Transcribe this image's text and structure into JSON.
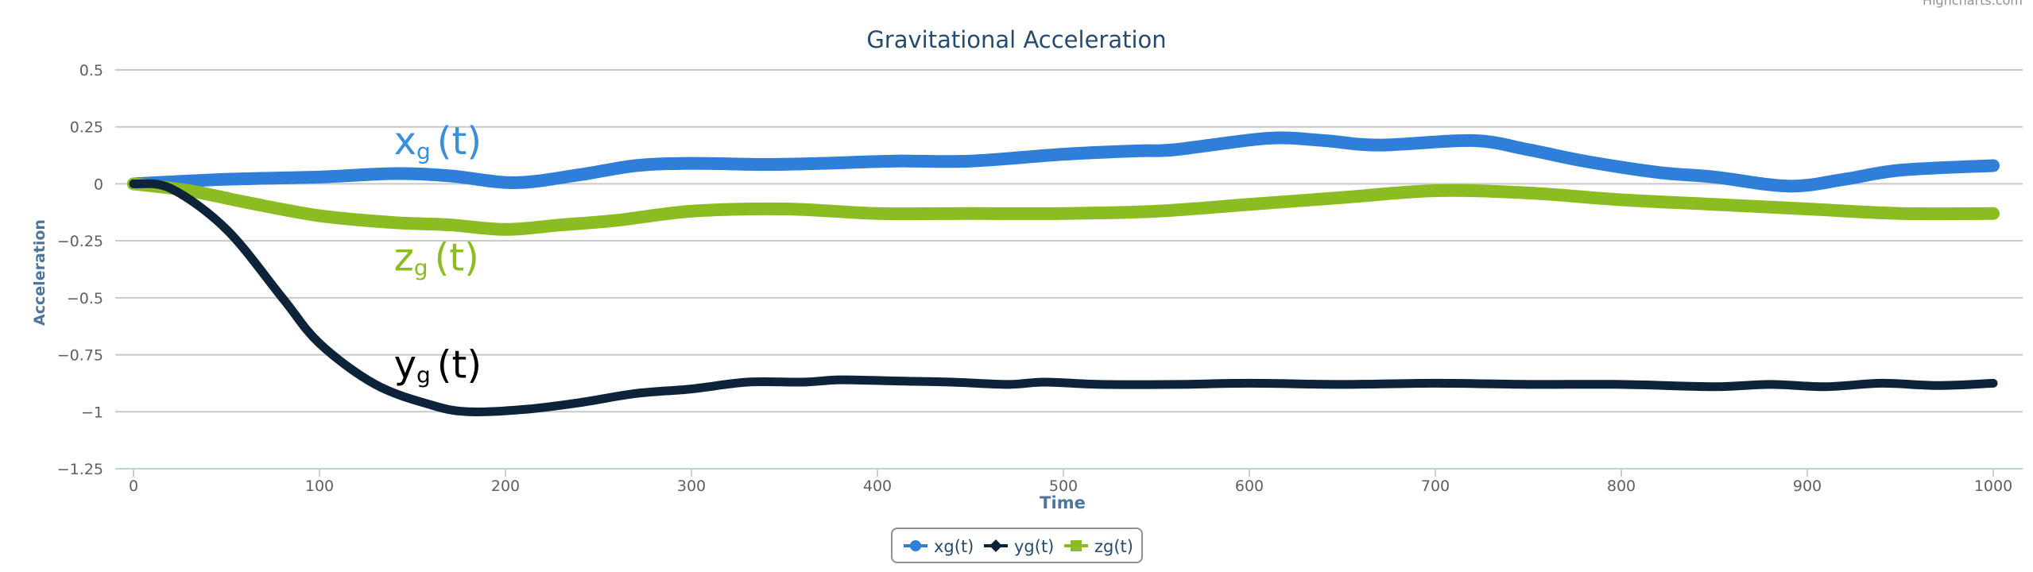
{
  "credit": "Highcharts.com",
  "chart_data": {
    "type": "line",
    "title": "Gravitational Acceleration",
    "xlabel": "Time",
    "ylabel": "Acceleration",
    "xlim": [
      0,
      1000
    ],
    "ylim": [
      -1.25,
      0.5
    ],
    "xticks": [
      0,
      100,
      200,
      300,
      400,
      500,
      600,
      700,
      800,
      900,
      1000
    ],
    "yticks": [
      0.5,
      0.25,
      0,
      -0.25,
      -0.5,
      -0.75,
      -1,
      -1.25
    ],
    "ytick_labels": [
      "0.5",
      "0.25",
      "0",
      "−0.25",
      "−0.5",
      "−0.75",
      "−1",
      "−1.25"
    ],
    "grid": true,
    "legend_placement": "bottom-center",
    "series": [
      {
        "name": "xg(t)",
        "color": "#2f7ed8",
        "marker": "circle",
        "x": [
          0,
          50,
          100,
          140,
          170,
          205,
          240,
          270,
          300,
          340,
          370,
          410,
          450,
          500,
          540,
          560,
          610,
          640,
          670,
          720,
          750,
          780,
          820,
          850,
          890,
          920,
          950,
          1000
        ],
        "y": [
          0,
          0.02,
          0.03,
          0.045,
          0.035,
          0.005,
          0.04,
          0.08,
          0.09,
          0.085,
          0.09,
          0.1,
          0.1,
          0.13,
          0.145,
          0.15,
          0.2,
          0.19,
          0.17,
          0.19,
          0.15,
          0.1,
          0.05,
          0.03,
          -0.01,
          0.02,
          0.06,
          0.08
        ]
      },
      {
        "name": "yg(t)",
        "color": "#0d233a",
        "marker": "diamond",
        "x": [
          0,
          20,
          50,
          80,
          100,
          130,
          160,
          180,
          210,
          240,
          270,
          300,
          330,
          360,
          380,
          410,
          440,
          470,
          490,
          520,
          560,
          600,
          650,
          700,
          750,
          800,
          850,
          880,
          910,
          940,
          970,
          1000
        ],
        "y": [
          0,
          -0.02,
          -0.2,
          -0.5,
          -0.7,
          -0.88,
          -0.97,
          -1.0,
          -0.99,
          -0.96,
          -0.92,
          -0.9,
          -0.87,
          -0.87,
          -0.86,
          -0.865,
          -0.87,
          -0.88,
          -0.87,
          -0.88,
          -0.88,
          -0.875,
          -0.88,
          -0.875,
          -0.88,
          -0.88,
          -0.89,
          -0.88,
          -0.89,
          -0.875,
          -0.885,
          -0.875
        ]
      },
      {
        "name": "zg(t)",
        "color": "#8bbc21",
        "marker": "square",
        "x": [
          0,
          30,
          60,
          100,
          140,
          170,
          200,
          230,
          260,
          300,
          350,
          400,
          450,
          500,
          550,
          600,
          650,
          700,
          750,
          800,
          850,
          900,
          950,
          1000
        ],
        "y": [
          0,
          -0.03,
          -0.08,
          -0.14,
          -0.17,
          -0.18,
          -0.2,
          -0.18,
          -0.16,
          -0.12,
          -0.11,
          -0.13,
          -0.13,
          -0.13,
          -0.12,
          -0.09,
          -0.06,
          -0.03,
          -0.04,
          -0.07,
          -0.09,
          -0.11,
          -0.13,
          -0.13
        ]
      }
    ],
    "annotations": [
      {
        "base": "x",
        "sub": "g",
        "tail": "(t)",
        "color": "#3a8fd8",
        "at": [
          140,
          0.13
        ]
      },
      {
        "base": "z",
        "sub": "g",
        "tail": "(t)",
        "color": "#8bbc21",
        "at": [
          140,
          -0.38
        ]
      },
      {
        "base": "y",
        "sub": "g",
        "tail": "(t)",
        "color": "#000000",
        "at": [
          140,
          -0.85
        ]
      }
    ]
  }
}
